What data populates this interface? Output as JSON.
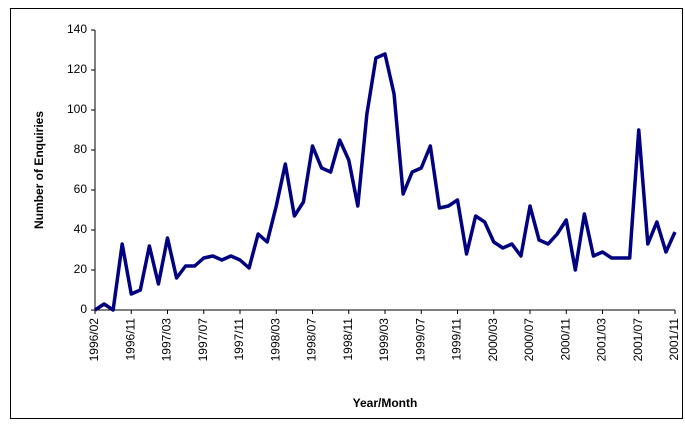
{
  "chart_data": {
    "type": "line",
    "x_label": "Year/Month",
    "y_label": "Number of Enquiries",
    "categories": [
      "1996/02",
      null,
      null,
      null,
      "1996/11",
      null,
      null,
      null,
      "1997/03",
      null,
      null,
      null,
      "1997/07",
      null,
      null,
      null,
      "1997/11",
      null,
      null,
      null,
      "1998/03",
      null,
      null,
      null,
      "1998/07",
      null,
      null,
      null,
      "1998/11",
      null,
      null,
      null,
      "1999/03",
      null,
      null,
      null,
      "1999/07",
      null,
      null,
      null,
      "1999/11",
      null,
      null,
      null,
      "2000/03",
      null,
      null,
      null,
      "2000/07",
      null,
      null,
      null,
      "2000/11",
      null,
      null,
      null,
      "2001/03",
      null,
      null,
      null,
      "2001/07",
      null,
      null,
      null,
      "2001/11"
    ],
    "values": [
      0,
      3,
      0,
      33,
      8,
      10,
      32,
      13,
      36,
      16,
      22,
      22,
      26,
      27,
      25,
      27,
      25,
      21,
      38,
      34,
      52,
      73,
      47,
      54,
      82,
      71,
      69,
      85,
      75,
      52,
      98,
      126,
      128,
      108,
      58,
      69,
      71,
      82,
      51,
      52,
      55,
      28,
      47,
      44,
      34,
      31,
      33,
      27,
      52,
      35,
      33,
      38,
      45,
      20,
      48,
      27,
      29,
      26,
      26,
      26,
      90,
      33,
      44,
      29,
      39
    ],
    "color": "#000080",
    "ylim": [
      0,
      140
    ],
    "yticks": [
      0,
      20,
      40,
      60,
      80,
      100,
      120,
      140
    ],
    "grid": false
  }
}
